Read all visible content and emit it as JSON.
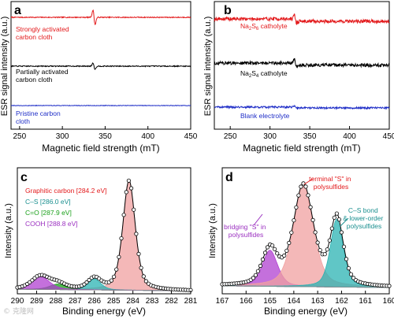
{
  "watermark": "© 克隆网",
  "chart_data": [
    {
      "panel": "a",
      "type": "line",
      "xlabel": "Magnetic field strength (mT)",
      "ylabel": "ESR signal intensity (a.u.)",
      "xlim": [
        240,
        450
      ],
      "xticks": [
        "250",
        "300",
        "350",
        "400",
        "450"
      ],
      "series": [
        {
          "name": "Strongly activated carbon cloth",
          "color": "#e31a1c",
          "center": 337,
          "amplitude": 0.8,
          "noise": 0.05
        },
        {
          "name": "Partially activated carbon cloth",
          "color": "#000000",
          "center": 337,
          "amplitude": 0.35,
          "noise": 0.05
        },
        {
          "name": "Pristine carbon cloth",
          "color": "#1f2ec7",
          "center": 337,
          "amplitude": 0.0,
          "noise": 0.03
        }
      ]
    },
    {
      "panel": "b",
      "type": "line",
      "xlabel": "Magnetic field strength (mT)",
      "ylabel": "ESR signal intensity (a.u.)",
      "xlim": [
        230,
        450
      ],
      "xticks": [
        "250",
        "300",
        "350",
        "400",
        "450"
      ],
      "series": [
        {
          "name": "Na₂S₆ catholyte",
          "color": "#e31a1c",
          "center": 332,
          "amplitude": 0.45,
          "noise": 0.18
        },
        {
          "name": "Na₂S₄ catholyte",
          "color": "#000000",
          "center": 332,
          "amplitude": 0.4,
          "noise": 0.18
        },
        {
          "name": "Blank electrolyte",
          "color": "#1f2ec7",
          "center": 332,
          "amplitude": 0.15,
          "noise": 0.1
        }
      ]
    },
    {
      "panel": "c",
      "type": "line",
      "xlabel": "Binding energy (eV)",
      "ylabel": "Intensity (a.u.)",
      "xlim": [
        290,
        281
      ],
      "xreversed": true,
      "xticks": [
        "290",
        "289",
        "288",
        "287",
        "286",
        "285",
        "284",
        "283",
        "282",
        "281"
      ],
      "ylim": [
        0,
        1.08
      ],
      "background": 0.02,
      "components": [
        {
          "name": "Graphitic carbon [284.2 eV]",
          "center": 284.2,
          "height": 1.0,
          "width": 0.38,
          "color": "#f0a0a0",
          "label_color": "#e31a1c"
        },
        {
          "name": "C–S [286.0 eV]",
          "center": 286.0,
          "height": 0.1,
          "width": 0.4,
          "color": "#2bb3b3",
          "label_color": "#1a8f8f"
        },
        {
          "name": "C=O [287.9 eV]",
          "center": 287.9,
          "height": 0.05,
          "width": 0.5,
          "color": "#1aa01a",
          "label_color": "#1aa01a"
        },
        {
          "name": "COOH [288.8 eV]",
          "center": 288.8,
          "height": 0.12,
          "width": 0.55,
          "color": "#b040d0",
          "label_color": "#9b30c0"
        }
      ]
    },
    {
      "panel": "d",
      "type": "line",
      "xlabel": "Binding energy (eV)",
      "ylabel": "Intensity (a.u.)",
      "xlim": [
        167,
        160
      ],
      "xreversed": true,
      "xticks": [
        "167",
        "166",
        "165",
        "164",
        "163",
        "162",
        "161",
        "160"
      ],
      "ylim": [
        0,
        1.08
      ],
      "background": 0.05,
      "components": [
        {
          "name": "bridging \"S\" in polysulfides",
          "center": 165.0,
          "height": 0.33,
          "width": 0.38,
          "color": "#b040d0",
          "label_color": "#9b30c0"
        },
        {
          "name": "terminal \"S\" in polysulfides",
          "center": 163.6,
          "height": 0.92,
          "width": 0.5,
          "color": "#f0a0a0",
          "label_color": "#e31a1c"
        },
        {
          "name": "C–S bond & lower-order polysulfides",
          "center": 162.2,
          "height": 0.62,
          "width": 0.32,
          "color": "#2bb3b3",
          "label_color": "#1a8f8f"
        }
      ]
    }
  ],
  "panel_a_labels": {
    "tag": "a",
    "strong": [
      "Strongly activated",
      "carbon cloth"
    ],
    "partial": [
      "Partially activated",
      "carbon cloth"
    ],
    "pristine": [
      "Pristine carbon",
      "cloth"
    ]
  },
  "panel_b_labels": {
    "tag": "b",
    "na2s6": [
      "Na",
      "2",
      "S",
      "6",
      " catholyte"
    ],
    "na2s4": [
      "Na",
      "2",
      "S",
      "4",
      " catholyte"
    ],
    "blank": "Blank electrolyte"
  },
  "panel_c_labels": {
    "tag": "c",
    "graphitic": "Graphitic carbon [284.2 eV]",
    "cs": "C–S [286.0 eV]",
    "co": "C=O [287.9 eV]",
    "cooh": "COOH [288.8 eV]"
  },
  "panel_d_labels": {
    "tag": "d",
    "bridging": [
      "bridging \"S\" in",
      "polysulfides"
    ],
    "terminal": [
      "terminal \"S\" in",
      "polysulfides"
    ],
    "cs": [
      "C–S bond",
      "& lower-order",
      "polysulfides"
    ]
  }
}
